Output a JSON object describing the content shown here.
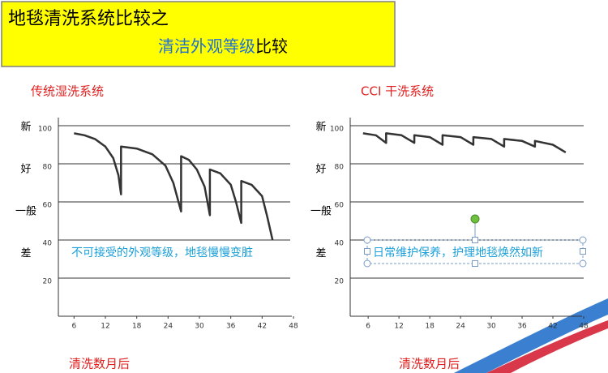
{
  "header": {
    "title": "地毯清洗系统比较之",
    "subtitle_blue": "清洁外观等级",
    "subtitle_black": "比较"
  },
  "chart_data": [
    {
      "type": "line",
      "title": "传统湿洗系统",
      "x_label": "清洗数月后",
      "y_category_labels": [
        "新",
        "好",
        "一般",
        "差"
      ],
      "annotation": "不可接受的外观等级，地毯慢慢变脏",
      "color": "#333333",
      "x": [
        6,
        8,
        10,
        12,
        13.5,
        14.5,
        15,
        15,
        18,
        21,
        23.5,
        25,
        26.5,
        26.5,
        28,
        29.5,
        31,
        32,
        32,
        34,
        36,
        37,
        38,
        38,
        40,
        42,
        43,
        44
      ],
      "values": [
        96,
        95,
        93,
        89,
        83,
        74,
        64,
        89,
        88,
        85,
        79,
        70,
        55,
        84,
        82,
        77,
        68,
        53,
        77,
        75,
        69,
        60,
        49,
        71,
        69,
        63,
        52,
        40
      ],
      "xlim": [
        3,
        48
      ],
      "xticks": [
        6,
        12,
        18,
        24,
        30,
        36,
        42,
        48
      ],
      "ylim": [
        0,
        100
      ],
      "yticks": [
        20,
        40,
        60,
        80,
        100
      ],
      "grid": true
    },
    {
      "type": "line",
      "title": "CCI 干洗系统",
      "x_label": "清洗数月后",
      "y_category_labels": [
        "新",
        "好",
        "一般",
        "差"
      ],
      "annotation": "日常维护保养，护理地毯焕然如新",
      "color": "#333333",
      "x": [
        5,
        7.5,
        9.5,
        9.5,
        12.5,
        15,
        15,
        18,
        20.5,
        20.5,
        24,
        26.5,
        26.5,
        30,
        32.5,
        32.5,
        36,
        38.5,
        38.5,
        42,
        44.5
      ],
      "values": [
        96,
        95,
        91,
        96,
        95,
        91,
        95,
        94,
        90,
        95,
        94,
        90,
        94,
        93,
        89,
        93,
        92,
        89,
        92,
        90,
        86
      ],
      "xlim": [
        2.5,
        48
      ],
      "xticks": [
        6,
        12,
        18,
        24,
        30,
        36,
        42,
        48
      ],
      "ylim": [
        0,
        100
      ],
      "yticks": [
        20,
        40,
        60,
        80,
        100
      ],
      "grid": true
    }
  ]
}
